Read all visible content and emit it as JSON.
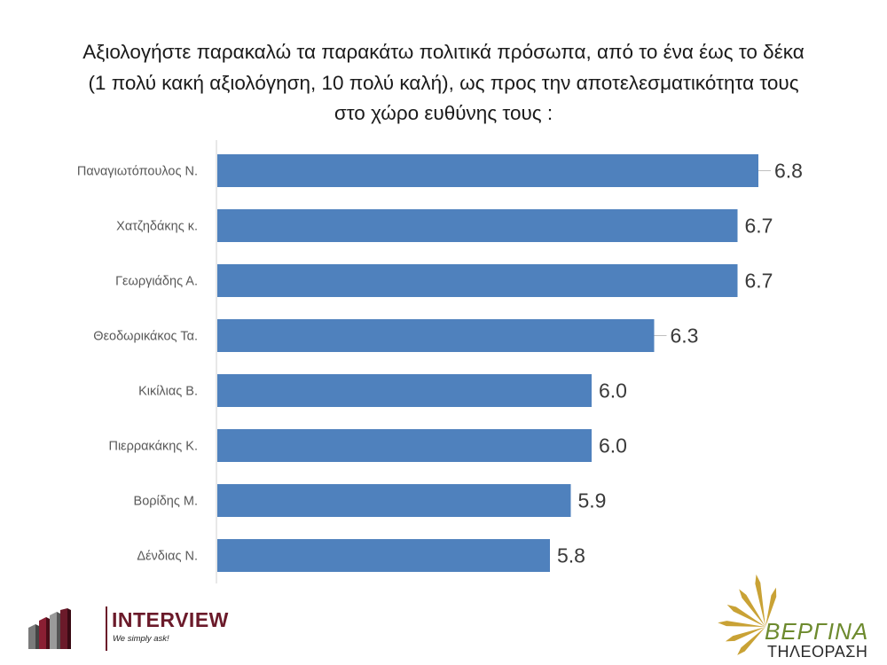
{
  "title_lines": [
    "Αξιολογήστε παρακαλώ τα παρακάτω πολιτικά πρόσωπα, από το ένα έως το δέκα",
    "(1 πολύ κακή αξιολόγηση, 10 πολύ καλή), ως προς την αποτελεσματικότητα τους",
    "στο χώρο ευθύνης τους :"
  ],
  "chart_data": {
    "type": "bar",
    "orientation": "horizontal",
    "categories": [
      "Παναγιωτόπουλος Ν.",
      "Χατζηδάκης κ.",
      "Γεωργιάδης Α.",
      "Θεοδωρικάκος Τα.",
      "Κικίλιας Β.",
      "Πιερρακάκης Κ.",
      "Βορίδης Μ.",
      "Δένδιας Ν."
    ],
    "values": [
      6.8,
      6.7,
      6.7,
      6.3,
      6.0,
      6.0,
      5.9,
      5.8
    ],
    "value_labels": [
      "6.8",
      "6.7",
      "6.7",
      "6.3",
      "6.0",
      "6.0",
      "5.9",
      "5.8"
    ],
    "xlim": [
      4.2,
      6.8
    ],
    "bar_color": "#4f81bd",
    "grid": false,
    "legend": "none"
  },
  "logos": {
    "left": {
      "brand": "INTERVIEW",
      "tagline": "We simply ask!",
      "color": "#6b1a2a"
    },
    "right": {
      "name": "ΒΕΡΓΙΝΑ",
      "subtitle": "ΤΗΛΕΟΡΑΣΗ",
      "color": "#6d8a2e"
    }
  }
}
